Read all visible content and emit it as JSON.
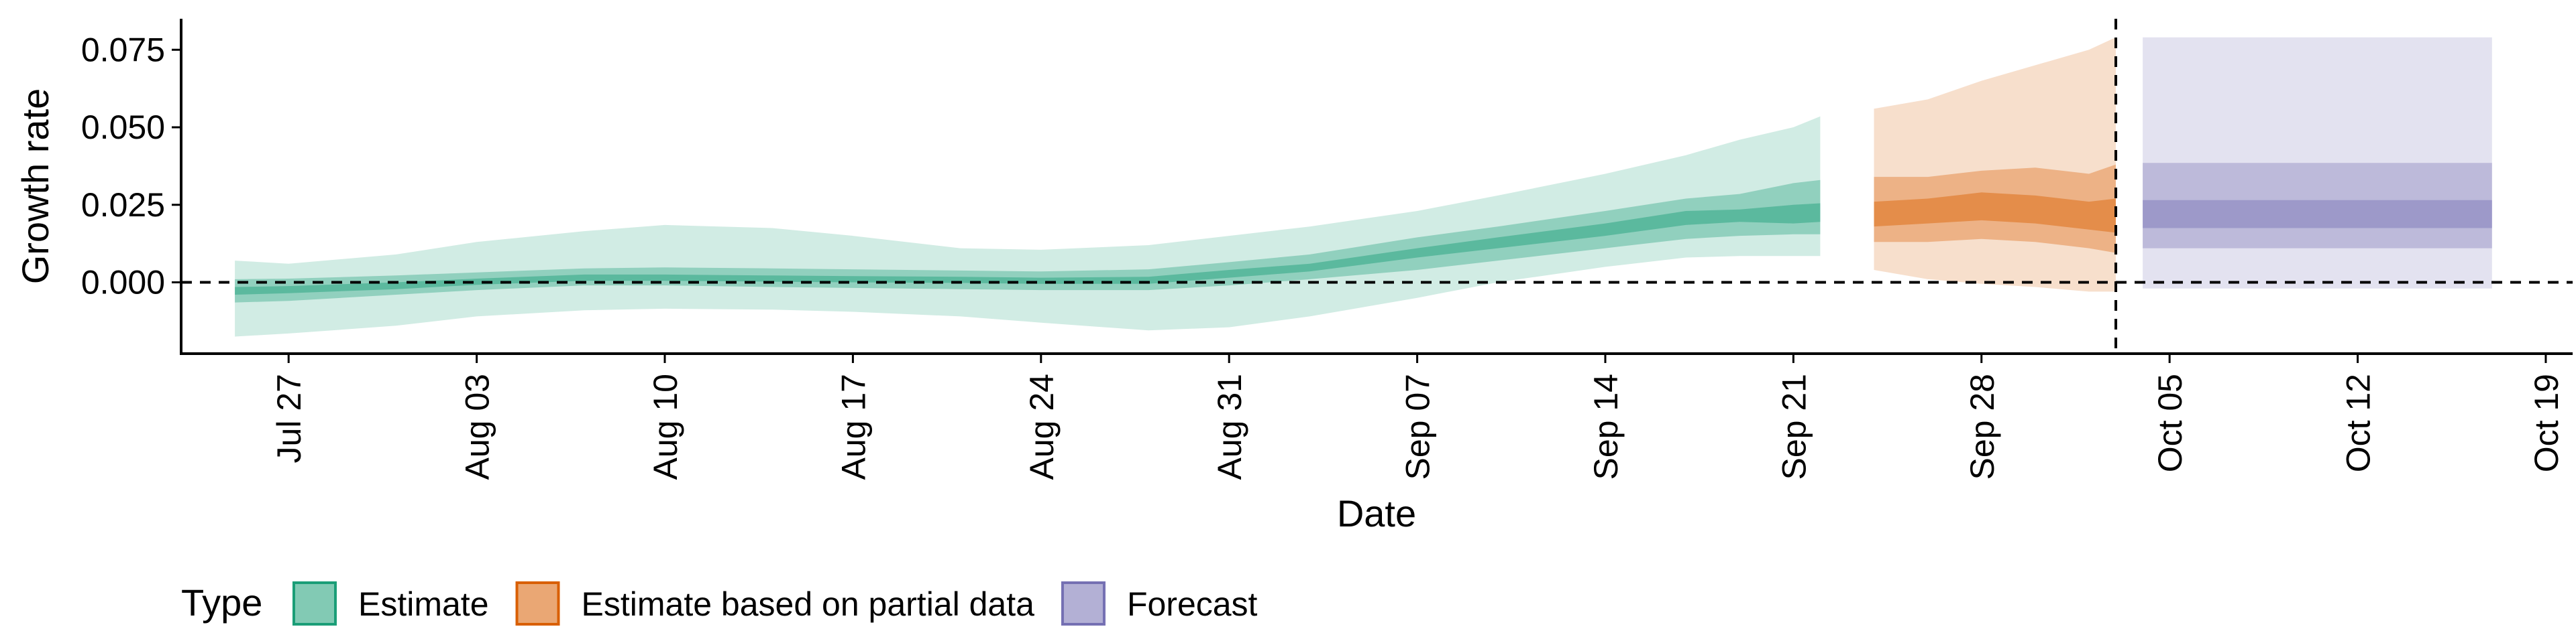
{
  "chart_data": {
    "type": "area",
    "xlabel": "Date",
    "ylabel": "Growth rate",
    "ylim": [
      -0.023,
      0.085
    ],
    "xlim": [
      "2021-07-23",
      "2021-10-20"
    ],
    "y_ticks": [
      {
        "value": 0.0,
        "label": "0.000"
      },
      {
        "value": 0.025,
        "label": "0.025"
      },
      {
        "value": 0.05,
        "label": "0.050"
      },
      {
        "value": 0.075,
        "label": "0.075"
      }
    ],
    "x_ticks": [
      {
        "date": "2021-07-27",
        "label": "Jul 27"
      },
      {
        "date": "2021-08-03",
        "label": "Aug 03"
      },
      {
        "date": "2021-08-10",
        "label": "Aug 10"
      },
      {
        "date": "2021-08-17",
        "label": "Aug 17"
      },
      {
        "date": "2021-08-24",
        "label": "Aug 24"
      },
      {
        "date": "2021-08-31",
        "label": "Aug 31"
      },
      {
        "date": "2021-09-07",
        "label": "Sep 07"
      },
      {
        "date": "2021-09-14",
        "label": "Sep 14"
      },
      {
        "date": "2021-09-21",
        "label": "Sep 21"
      },
      {
        "date": "2021-09-28",
        "label": "Sep 28"
      },
      {
        "date": "2021-10-05",
        "label": "Oct 05"
      },
      {
        "date": "2021-10-12",
        "label": "Oct 12"
      },
      {
        "date": "2021-10-19",
        "label": "Oct 19"
      }
    ],
    "reference_lines": {
      "horizontal_y": 0.0,
      "vertical_date": "2021-10-03"
    },
    "grid": false,
    "legend": {
      "title": "Type",
      "position": "bottom-left",
      "entries": [
        {
          "label": "Estimate",
          "color": "#1b9e77"
        },
        {
          "label": "Estimate based on partial data",
          "color": "#d95f02"
        },
        {
          "label": "Forecast",
          "color": "#7570b3"
        }
      ]
    },
    "series": [
      {
        "name": "Estimate",
        "color": "#1b9e77",
        "points": [
          {
            "date": "2021-07-25",
            "lo90": -0.0175,
            "lo50": -0.0065,
            "lo20": -0.004,
            "hi20": -0.0015,
            "hi50": 0.001,
            "hi90": 0.007
          },
          {
            "date": "2021-07-27",
            "lo90": -0.0165,
            "lo50": -0.006,
            "lo20": -0.0035,
            "hi20": -0.0012,
            "hi50": 0.0012,
            "hi90": 0.006
          },
          {
            "date": "2021-07-31",
            "lo90": -0.014,
            "lo50": -0.004,
            "lo20": -0.0022,
            "hi20": 0.0,
            "hi50": 0.0022,
            "hi90": 0.009
          },
          {
            "date": "2021-08-03",
            "lo90": -0.011,
            "lo50": -0.0025,
            "lo20": -0.0008,
            "hi20": 0.0012,
            "hi50": 0.0032,
            "hi90": 0.013
          },
          {
            "date": "2021-08-07",
            "lo90": -0.009,
            "lo50": -0.001,
            "lo20": 0.0005,
            "hi20": 0.0025,
            "hi50": 0.0045,
            "hi90": 0.0165
          },
          {
            "date": "2021-08-10",
            "lo90": -0.0085,
            "lo50": -0.001,
            "lo20": 0.0005,
            "hi20": 0.0025,
            "hi50": 0.0048,
            "hi90": 0.0185
          },
          {
            "date": "2021-08-14",
            "lo90": -0.0088,
            "lo50": -0.0015,
            "lo20": 0.0002,
            "hi20": 0.0022,
            "hi50": 0.0045,
            "hi90": 0.0175
          },
          {
            "date": "2021-08-17",
            "lo90": -0.0095,
            "lo50": -0.0018,
            "lo20": 0.0,
            "hi20": 0.002,
            "hi50": 0.0042,
            "hi90": 0.015
          },
          {
            "date": "2021-08-21",
            "lo90": -0.011,
            "lo50": -0.0022,
            "lo20": -0.0002,
            "hi20": 0.0018,
            "hi50": 0.0038,
            "hi90": 0.011
          },
          {
            "date": "2021-08-24",
            "lo90": -0.013,
            "lo50": -0.0025,
            "lo20": -0.0005,
            "hi20": 0.0015,
            "hi50": 0.0035,
            "hi90": 0.0105
          },
          {
            "date": "2021-08-28",
            "lo90": -0.0155,
            "lo50": -0.0025,
            "lo20": -0.0005,
            "hi20": 0.0018,
            "hi50": 0.0042,
            "hi90": 0.012
          },
          {
            "date": "2021-08-31",
            "lo90": -0.0145,
            "lo50": -0.001,
            "lo20": 0.0015,
            "hi20": 0.004,
            "hi50": 0.0065,
            "hi90": 0.015
          },
          {
            "date": "2021-09-03",
            "lo90": -0.011,
            "lo50": 0.001,
            "lo20": 0.0035,
            "hi20": 0.006,
            "hi50": 0.009,
            "hi90": 0.018
          },
          {
            "date": "2021-09-07",
            "lo90": -0.005,
            "lo50": 0.004,
            "lo20": 0.008,
            "hi20": 0.011,
            "hi50": 0.0145,
            "hi90": 0.023
          },
          {
            "date": "2021-09-10",
            "lo90": 0.0,
            "lo50": 0.007,
            "lo20": 0.011,
            "hi20": 0.0145,
            "hi50": 0.018,
            "hi90": 0.028
          },
          {
            "date": "2021-09-14",
            "lo90": 0.005,
            "lo50": 0.011,
            "lo20": 0.015,
            "hi20": 0.019,
            "hi50": 0.023,
            "hi90": 0.035
          },
          {
            "date": "2021-09-17",
            "lo90": 0.008,
            "lo50": 0.014,
            "lo20": 0.0185,
            "hi20": 0.023,
            "hi50": 0.027,
            "hi90": 0.041
          },
          {
            "date": "2021-09-19",
            "lo90": 0.0085,
            "lo50": 0.015,
            "lo20": 0.0195,
            "hi20": 0.0235,
            "hi50": 0.0285,
            "hi90": 0.046
          },
          {
            "date": "2021-09-21",
            "lo90": 0.0085,
            "lo50": 0.0155,
            "lo20": 0.019,
            "hi20": 0.025,
            "hi50": 0.032,
            "hi90": 0.05
          },
          {
            "date": "2021-09-22",
            "lo90": 0.0085,
            "lo50": 0.0155,
            "lo20": 0.0195,
            "hi20": 0.0255,
            "hi50": 0.033,
            "hi90": 0.0535
          }
        ]
      },
      {
        "name": "Estimate based on partial data",
        "color": "#d95f02",
        "points": [
          {
            "date": "2021-09-24",
            "lo90": 0.004,
            "lo50": 0.013,
            "lo20": 0.018,
            "hi20": 0.026,
            "hi50": 0.034,
            "hi90": 0.056
          },
          {
            "date": "2021-09-26",
            "lo90": 0.001,
            "lo50": 0.013,
            "lo20": 0.019,
            "hi20": 0.027,
            "hi50": 0.034,
            "hi90": 0.059
          },
          {
            "date": "2021-09-28",
            "lo90": -0.0005,
            "lo50": 0.014,
            "lo20": 0.02,
            "hi20": 0.029,
            "hi50": 0.036,
            "hi90": 0.065
          },
          {
            "date": "2021-09-30",
            "lo90": -0.0015,
            "lo50": 0.013,
            "lo20": 0.019,
            "hi20": 0.028,
            "hi50": 0.037,
            "hi90": 0.07
          },
          {
            "date": "2021-10-02",
            "lo90": -0.003,
            "lo50": 0.011,
            "lo20": 0.017,
            "hi20": 0.026,
            "hi50": 0.035,
            "hi90": 0.075
          },
          {
            "date": "2021-10-03",
            "lo90": -0.003,
            "lo50": 0.0095,
            "lo20": 0.016,
            "hi20": 0.027,
            "hi50": 0.038,
            "hi90": 0.079
          }
        ]
      },
      {
        "name": "Forecast",
        "color": "#7570b3",
        "points": [
          {
            "date": "2021-10-04",
            "lo90": -0.002,
            "lo50": 0.011,
            "lo20": 0.0175,
            "hi20": 0.0265,
            "hi50": 0.0385,
            "hi90": 0.079
          },
          {
            "date": "2021-10-17",
            "lo90": -0.002,
            "lo50": 0.011,
            "lo20": 0.0175,
            "hi20": 0.0265,
            "hi50": 0.0385,
            "hi90": 0.079
          }
        ]
      }
    ]
  }
}
